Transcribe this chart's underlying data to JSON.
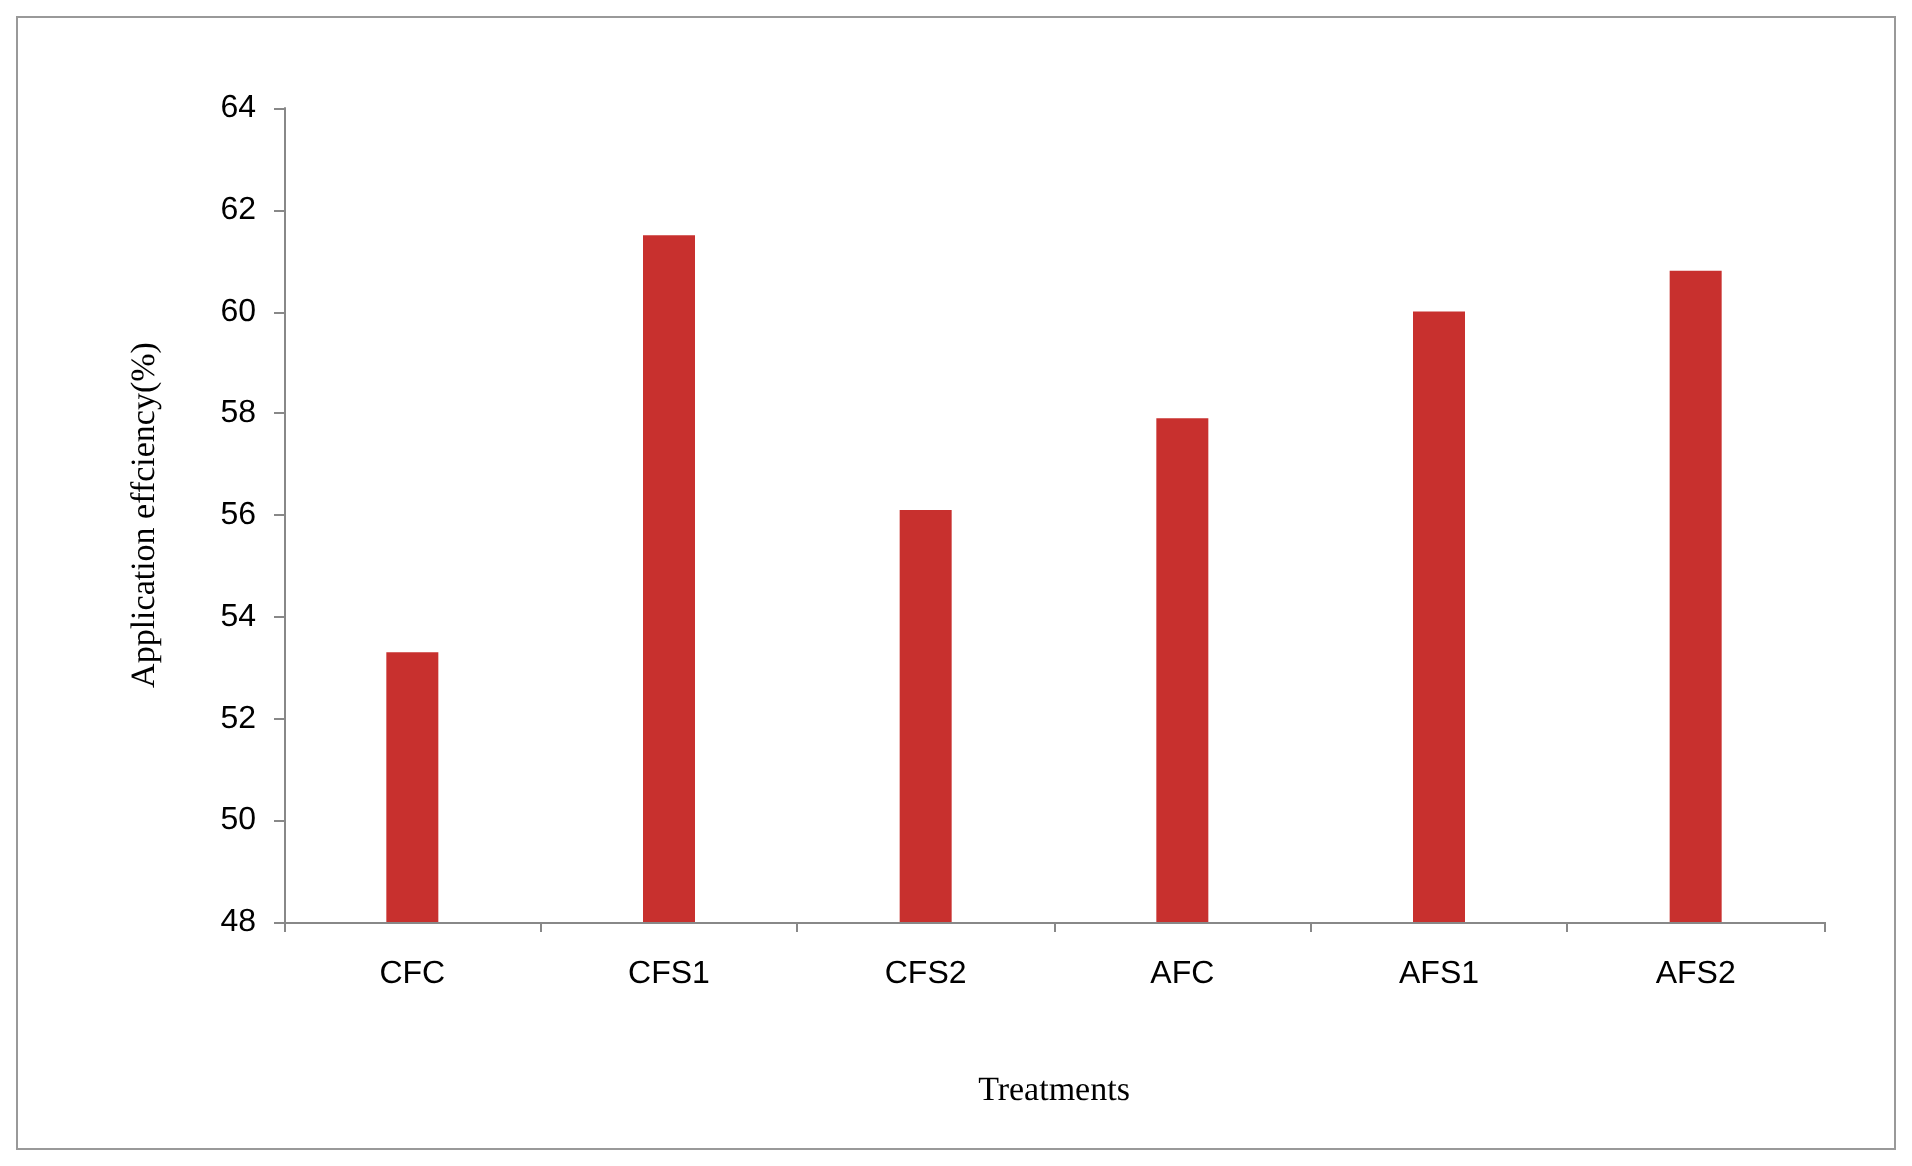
{
  "chart_data": {
    "type": "bar",
    "xlabel": "Treatments",
    "ylabel": "Application effciency(%)",
    "categories": [
      "CFC",
      "CFS1",
      "CFS2",
      "AFC",
      "AFS1",
      "AFS2"
    ],
    "values": [
      53.3,
      61.5,
      56.1,
      57.9,
      60.0,
      60.8
    ],
    "color": "#c8302e",
    "ylim": [
      48,
      64
    ],
    "yticks": [
      48,
      50,
      52,
      54,
      56,
      58,
      60,
      62,
      64
    ],
    "grid": false
  }
}
